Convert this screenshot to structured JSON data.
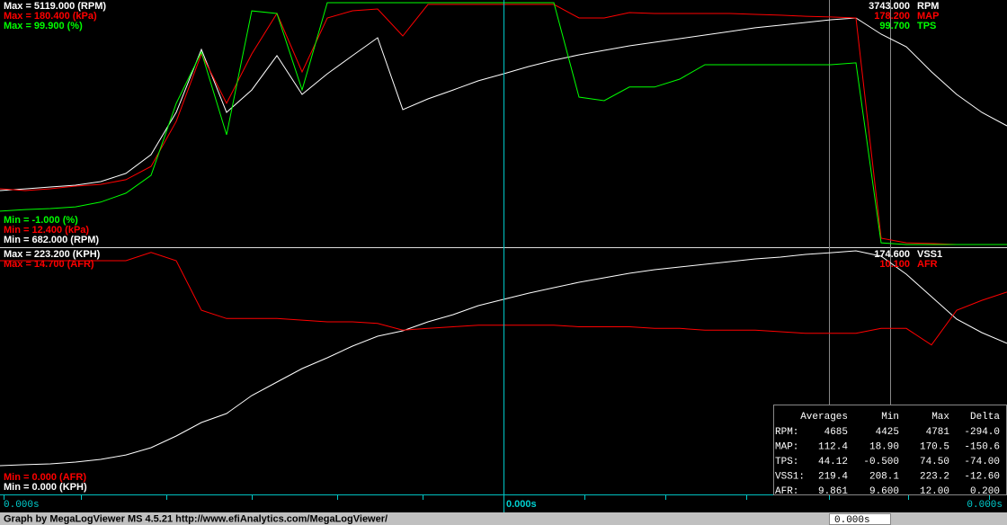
{
  "chart_data": [
    {
      "type": "line",
      "series": [
        {
          "name": "RPM",
          "color": "#ffffff",
          "cursor": "3743.000",
          "ylim": [
            {
              "value": 682,
              "label": "Min = 682.000 (RPM)"
            },
            {
              "value": 5119,
              "label": "Max = 5119.000 (RPM)"
            }
          ],
          "values": [
            1672,
            1703,
            1738,
            1770,
            1836,
            1986,
            2332,
            3106,
            4262,
            3106,
            3518,
            4147,
            3437,
            3815,
            4147,
            4476,
            3157,
            3354,
            3518,
            3685,
            3815,
            3948,
            4063,
            4162,
            4245,
            4328,
            4393,
            4460,
            4526,
            4592,
            4658,
            4707,
            4756,
            4805,
            4838,
            4542,
            4311,
            3850,
            3437,
            3106,
            2860
          ]
        },
        {
          "name": "MAP",
          "color": "#ff0000",
          "cursor": "178.200",
          "ylim": [
            {
              "value": 12.4,
              "label": "Min = 12.400 (kPa)"
            },
            {
              "value": 180.4,
              "label": "Max = 180.400 (kPa)"
            }
          ],
          "values": [
            51.1,
            49.9,
            51.1,
            53.0,
            54.2,
            57.4,
            66.7,
            97.9,
            144.8,
            110.5,
            144.8,
            172.9,
            132.3,
            169.8,
            174.8,
            176.0,
            157.3,
            179.2,
            179.2,
            179.2,
            179.2,
            179.2,
            179.2,
            169.8,
            169.8,
            173.5,
            172.9,
            172.9,
            172.9,
            172.9,
            172.3,
            171.7,
            171.0,
            170.5,
            169.8,
            16.8,
            13.6,
            13.1,
            12.4,
            12.4,
            12.4
          ]
        },
        {
          "name": "TPS",
          "color": "#00ff00",
          "cursor": "99.700",
          "ylim": [
            {
              "value": -1,
              "label": "Min = -1.000 (%)"
            },
            {
              "value": 99.9,
              "label": "Max = 99.900 (%)"
            }
          ],
          "values": [
            12.9,
            13.6,
            14.0,
            14.7,
            16.7,
            20.4,
            27.9,
            57.9,
            79.3,
            44.8,
            96.5,
            95.4,
            63.5,
            99.9,
            99.9,
            99.9,
            99.9,
            99.9,
            99.9,
            99.9,
            99.9,
            99.9,
            99.9,
            60.5,
            59.0,
            64.7,
            64.7,
            68.0,
            74.0,
            74.0,
            74.0,
            74.0,
            74.0,
            74.0,
            74.8,
            -0.3,
            -1.0,
            -1.0,
            -1.0,
            -1.0,
            -1.0
          ]
        }
      ]
    },
    {
      "type": "line",
      "series": [
        {
          "name": "VSS1",
          "color": "#ffffff",
          "cursor": "174.600",
          "ylim": [
            {
              "value": 0,
              "label": "Min = 0.000 (KPH)"
            },
            {
              "value": 223.2,
              "label": "Max = 223.200 (KPH)"
            }
          ],
          "values": [
            25.6,
            26.5,
            27.3,
            28.9,
            31.4,
            35.5,
            42.2,
            52.9,
            65.3,
            73.6,
            90.1,
            102.5,
            114.9,
            124.8,
            135.6,
            144.7,
            149.6,
            157.9,
            164.5,
            172.8,
            178.6,
            184.3,
            189.3,
            194.3,
            198.4,
            202.5,
            205.8,
            208.3,
            210.8,
            213.3,
            215.8,
            217.4,
            219.9,
            221.5,
            223.2,
            218.2,
            201.7,
            181.0,
            160.4,
            148.0,
            138.1
          ]
        },
        {
          "name": "AFR",
          "color": "#ff0000",
          "cursor": "10.100",
          "ylim": [
            {
              "value": 0,
              "label": "Min = 0.000 (AFR)"
            },
            {
              "value": 14.7,
              "label": "Max = 14.700 (AFR)"
            }
          ],
          "values": [
            14.1,
            14.1,
            14.1,
            14.1,
            14.1,
            14.1,
            14.6,
            14.1,
            11.1,
            10.6,
            10.6,
            10.6,
            10.5,
            10.4,
            10.4,
            10.3,
            9.9,
            10.0,
            10.1,
            10.2,
            10.2,
            10.2,
            10.2,
            10.1,
            10.1,
            10.1,
            10.0,
            10.0,
            9.9,
            9.9,
            9.9,
            9.8,
            9.7,
            9.7,
            9.7,
            10.0,
            10.0,
            9.0,
            11.1,
            11.7,
            12.2
          ]
        }
      ]
    }
  ],
  "stats": {
    "columns": [
      "Averages",
      "Min",
      "Max",
      "Delta"
    ],
    "rows": [
      [
        "RPM:",
        "4685",
        "4425",
        "4781",
        "-294.0"
      ],
      [
        "MAP:",
        "112.4",
        "18.90",
        "170.5",
        "-150.6"
      ],
      [
        "TPS:",
        "44.12",
        "-0.500",
        "74.50",
        "-74.00"
      ],
      [
        "VSS1:",
        "219.4",
        "208.1",
        "223.2",
        "-12.60"
      ],
      [
        "AFR:",
        "9.861",
        "9.600",
        "12.00",
        "0.200"
      ]
    ]
  },
  "time_labels": [
    "0.000s",
    "0.000s",
    "0.000s"
  ],
  "time_box": "0.000s",
  "footer": "Graph by MegaLogViewer MS 4.5.21 http://www.efiAnalytics.com/MegaLogViewer/"
}
